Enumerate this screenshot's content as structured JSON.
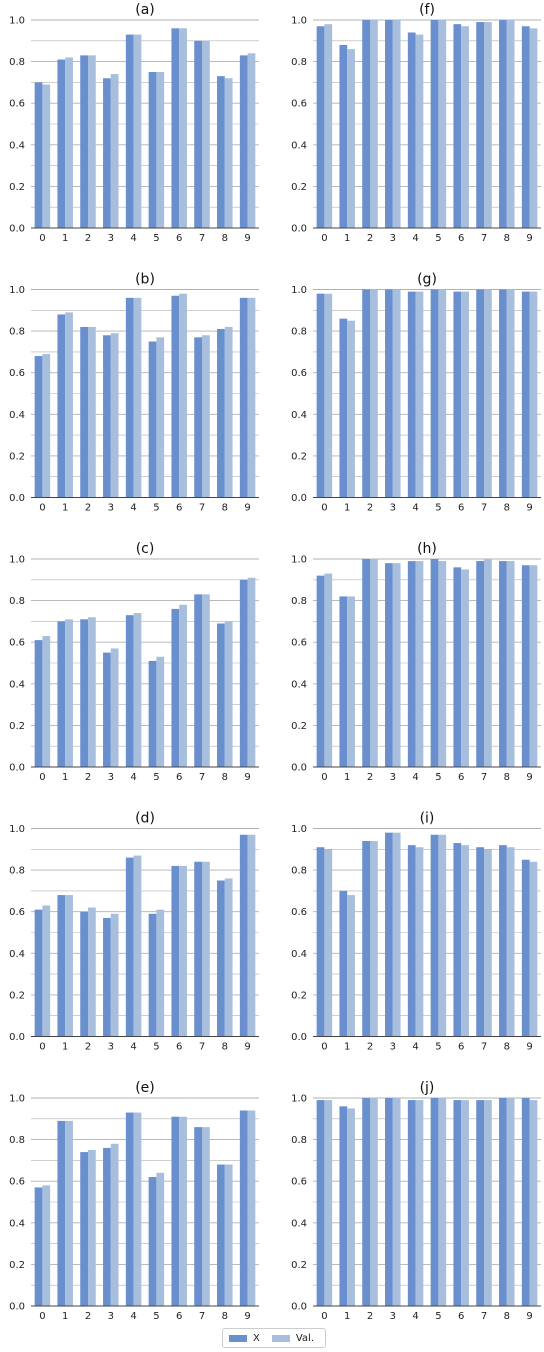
{
  "colors": {
    "series1": "#6a8fcf",
    "series2": "#a7bfdc",
    "grid": "#b0b0b0",
    "axis": "#444444"
  },
  "chart_data": [
    {
      "type": "bar",
      "title": "(a)",
      "categories": [
        "0",
        "1",
        "2",
        "3",
        "4",
        "5",
        "6",
        "7",
        "8",
        "9"
      ],
      "ylim": [
        0,
        1.0
      ],
      "yticks": [
        "0.0",
        "0.2",
        "0.4",
        "0.6",
        "0.8",
        "1.0"
      ],
      "series": [
        {
          "name": "X",
          "values": [
            0.7,
            0.81,
            0.83,
            0.72,
            0.93,
            0.75,
            0.96,
            0.9,
            0.73,
            0.83
          ]
        },
        {
          "name": "Val.",
          "values": [
            0.69,
            0.82,
            0.83,
            0.74,
            0.93,
            0.75,
            0.96,
            0.9,
            0.72,
            0.84
          ]
        }
      ]
    },
    {
      "type": "bar",
      "title": "(b)",
      "categories": [
        "0",
        "1",
        "2",
        "3",
        "4",
        "5",
        "6",
        "7",
        "8",
        "9"
      ],
      "ylim": [
        0,
        1.0
      ],
      "yticks": [
        "0.0",
        "0.2",
        "0.4",
        "0.6",
        "0.8",
        "1.0"
      ],
      "series": [
        {
          "name": "X",
          "values": [
            0.68,
            0.88,
            0.82,
            0.78,
            0.96,
            0.75,
            0.97,
            0.77,
            0.81,
            0.96
          ]
        },
        {
          "name": "Val.",
          "values": [
            0.69,
            0.89,
            0.82,
            0.79,
            0.96,
            0.77,
            0.98,
            0.78,
            0.82,
            0.96
          ]
        }
      ]
    },
    {
      "type": "bar",
      "title": "(c)",
      "categories": [
        "0",
        "1",
        "2",
        "3",
        "4",
        "5",
        "6",
        "7",
        "8",
        "9"
      ],
      "ylim": [
        0,
        1.0
      ],
      "yticks": [
        "0.0",
        "0.2",
        "0.4",
        "0.6",
        "0.8",
        "1.0"
      ],
      "series": [
        {
          "name": "X",
          "values": [
            0.61,
            0.7,
            0.71,
            0.55,
            0.73,
            0.51,
            0.76,
            0.83,
            0.69,
            0.9
          ]
        },
        {
          "name": "Val.",
          "values": [
            0.63,
            0.71,
            0.72,
            0.57,
            0.74,
            0.53,
            0.78,
            0.83,
            0.7,
            0.91
          ]
        }
      ]
    },
    {
      "type": "bar",
      "title": "(d)",
      "categories": [
        "0",
        "1",
        "2",
        "3",
        "4",
        "5",
        "6",
        "7",
        "8",
        "9"
      ],
      "ylim": [
        0,
        1.0
      ],
      "yticks": [
        "0.0",
        "0.2",
        "0.4",
        "0.6",
        "0.8",
        "1.0"
      ],
      "series": [
        {
          "name": "X",
          "values": [
            0.61,
            0.68,
            0.6,
            0.57,
            0.86,
            0.59,
            0.82,
            0.84,
            0.75,
            0.97
          ]
        },
        {
          "name": "Val.",
          "values": [
            0.63,
            0.68,
            0.62,
            0.59,
            0.87,
            0.61,
            0.82,
            0.84,
            0.76,
            0.97
          ]
        }
      ]
    },
    {
      "type": "bar",
      "title": "(e)",
      "categories": [
        "0",
        "1",
        "2",
        "3",
        "4",
        "5",
        "6",
        "7",
        "8",
        "9"
      ],
      "ylim": [
        0,
        1.0
      ],
      "yticks": [
        "0.0",
        "0.2",
        "0.4",
        "0.6",
        "0.8",
        "1.0"
      ],
      "series": [
        {
          "name": "X",
          "values": [
            0.57,
            0.89,
            0.74,
            0.76,
            0.93,
            0.62,
            0.91,
            0.86,
            0.68,
            0.94
          ]
        },
        {
          "name": "Val.",
          "values": [
            0.58,
            0.89,
            0.75,
            0.78,
            0.93,
            0.64,
            0.91,
            0.86,
            0.68,
            0.94
          ]
        }
      ]
    },
    {
      "type": "bar",
      "title": "(f)",
      "categories": [
        "0",
        "1",
        "2",
        "3",
        "4",
        "5",
        "6",
        "7",
        "8",
        "9"
      ],
      "ylim": [
        0,
        1.0
      ],
      "yticks": [
        "0.0",
        "0.2",
        "0.4",
        "0.6",
        "0.8",
        "1.0"
      ],
      "series": [
        {
          "name": "X",
          "values": [
            0.97,
            0.88,
            1.0,
            1.0,
            0.94,
            1.0,
            0.98,
            0.99,
            1.0,
            0.97
          ]
        },
        {
          "name": "Val.",
          "values": [
            0.98,
            0.86,
            1.0,
            1.0,
            0.93,
            1.0,
            0.97,
            0.99,
            1.0,
            0.96
          ]
        }
      ]
    },
    {
      "type": "bar",
      "title": "(g)",
      "categories": [
        "0",
        "1",
        "2",
        "3",
        "4",
        "5",
        "6",
        "7",
        "8",
        "9"
      ],
      "ylim": [
        0,
        1.0
      ],
      "yticks": [
        "0.0",
        "0.2",
        "0.4",
        "0.6",
        "0.8",
        "1.0"
      ],
      "series": [
        {
          "name": "X",
          "values": [
            0.98,
            0.86,
            1.0,
            1.0,
            0.99,
            1.0,
            0.99,
            1.0,
            1.0,
            0.99
          ]
        },
        {
          "name": "Val.",
          "values": [
            0.98,
            0.85,
            1.0,
            1.0,
            0.99,
            1.0,
            0.99,
            1.0,
            1.0,
            0.99
          ]
        }
      ]
    },
    {
      "type": "bar",
      "title": "(h)",
      "categories": [
        "0",
        "1",
        "2",
        "3",
        "4",
        "5",
        "6",
        "7",
        "8",
        "9"
      ],
      "ylim": [
        0,
        1.0
      ],
      "yticks": [
        "0.0",
        "0.2",
        "0.4",
        "0.6",
        "0.8",
        "1.0"
      ],
      "series": [
        {
          "name": "X",
          "values": [
            0.92,
            0.82,
            1.0,
            0.98,
            0.99,
            1.0,
            0.96,
            0.99,
            0.99,
            0.97
          ]
        },
        {
          "name": "Val.",
          "values": [
            0.93,
            0.82,
            1.0,
            0.98,
            0.99,
            0.99,
            0.95,
            1.0,
            0.99,
            0.97
          ]
        }
      ]
    },
    {
      "type": "bar",
      "title": "(i)",
      "categories": [
        "0",
        "1",
        "2",
        "3",
        "4",
        "5",
        "6",
        "7",
        "8",
        "9"
      ],
      "ylim": [
        0,
        1.0
      ],
      "yticks": [
        "0.0",
        "0.2",
        "0.4",
        "0.6",
        "0.8",
        "1.0"
      ],
      "series": [
        {
          "name": "X",
          "values": [
            0.91,
            0.7,
            0.94,
            0.98,
            0.92,
            0.97,
            0.93,
            0.91,
            0.92,
            0.85
          ]
        },
        {
          "name": "Val.",
          "values": [
            0.9,
            0.68,
            0.94,
            0.98,
            0.91,
            0.97,
            0.92,
            0.9,
            0.91,
            0.84
          ]
        }
      ]
    },
    {
      "type": "bar",
      "title": "(j)",
      "categories": [
        "0",
        "1",
        "2",
        "3",
        "4",
        "5",
        "6",
        "7",
        "8",
        "9"
      ],
      "ylim": [
        0,
        1.0
      ],
      "yticks": [
        "0.0",
        "0.2",
        "0.4",
        "0.6",
        "0.8",
        "1.0"
      ],
      "series": [
        {
          "name": "X",
          "values": [
            0.99,
            0.96,
            1.0,
            1.0,
            0.99,
            1.0,
            0.99,
            0.99,
            1.0,
            1.0
          ]
        },
        {
          "name": "Val.",
          "values": [
            0.99,
            0.95,
            1.0,
            1.0,
            0.99,
            1.0,
            0.99,
            0.99,
            1.0,
            0.99
          ]
        }
      ]
    }
  ],
  "legend": {
    "items": [
      {
        "label": "X"
      },
      {
        "label": "Val."
      }
    ],
    "placement": "bottom-center"
  }
}
